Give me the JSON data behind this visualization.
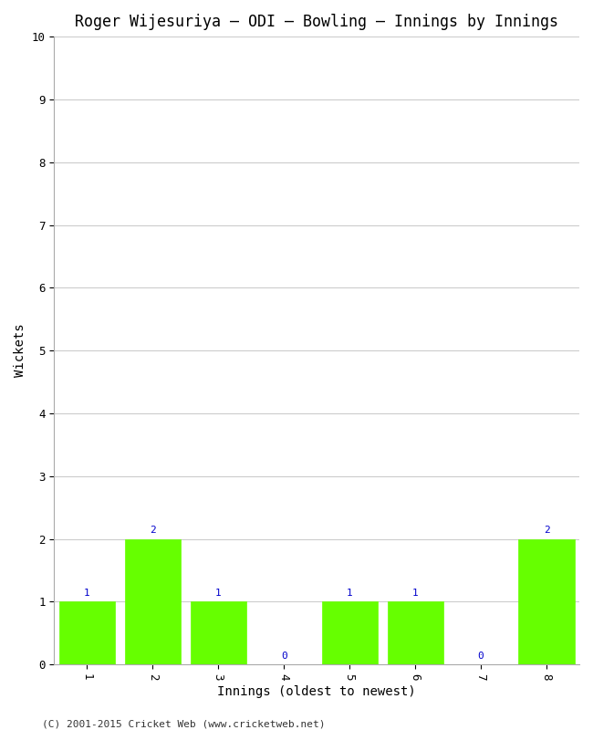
{
  "title": "Roger Wijesuriya – ODI – Bowling – Innings by Innings",
  "innings": [
    1,
    2,
    3,
    4,
    5,
    6,
    7,
    8
  ],
  "wickets": [
    1,
    2,
    1,
    0,
    1,
    1,
    0,
    2
  ],
  "bar_color": "#66ff00",
  "bar_edge_color": "#66ff00",
  "ylabel": "Wickets",
  "xlabel": "Innings (oldest to newest)",
  "ylim": [
    0,
    10
  ],
  "yticks": [
    0,
    1,
    2,
    3,
    4,
    5,
    6,
    7,
    8,
    9,
    10
  ],
  "label_color": "#0000cc",
  "label_fontsize": 8,
  "title_fontsize": 12,
  "axis_label_fontsize": 10,
  "tick_fontsize": 9,
  "copyright": "(C) 2001-2015 Cricket Web (www.cricketweb.net)",
  "copyright_fontsize": 8,
  "background_color": "#ffffff",
  "grid_color": "#cccccc",
  "font_family": "monospace"
}
